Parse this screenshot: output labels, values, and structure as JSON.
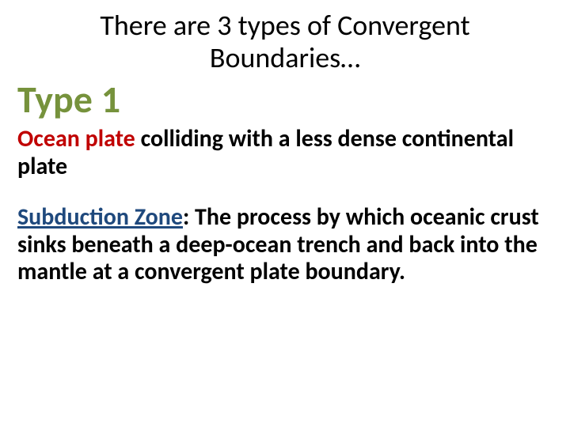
{
  "title": "There are 3 types of Convergent Boundaries…",
  "type_heading": "Type 1",
  "para1_highlight": "Ocean plate",
  "para1_rest": " colliding with a less dense continental plate",
  "para2_highlight": "Subduction Zone",
  "para2_rest": ": The process by which oceanic crust sinks beneath a deep-ocean trench and back into the mantle at a convergent plate boundary.",
  "colors": {
    "title": "#000000",
    "type_heading": "#76923c",
    "ocean_plate": "#c00000",
    "subduction": "#1f497d",
    "body_text": "#000000",
    "background": "#ffffff"
  },
  "typography": {
    "title_fontsize_pt": 27,
    "title_fontweight": 400,
    "type_heading_fontsize_pt": 36,
    "type_heading_fontweight": 700,
    "para_fontsize_pt": 22,
    "para_fontweight": 700,
    "font_family": "Calibri"
  }
}
